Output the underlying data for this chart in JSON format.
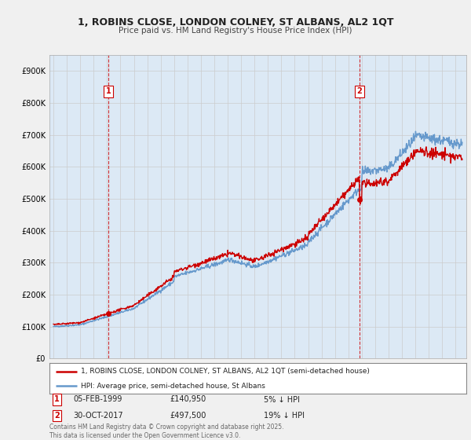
{
  "title": "1, ROBINS CLOSE, LONDON COLNEY, ST ALBANS, AL2 1QT",
  "subtitle": "Price paid vs. HM Land Registry's House Price Index (HPI)",
  "red_label": "1, ROBINS CLOSE, LONDON COLNEY, ST ALBANS, AL2 1QT (semi-detached house)",
  "blue_label": "HPI: Average price, semi-detached house, St Albans",
  "annotation1_date": "05-FEB-1999",
  "annotation1_price": "£140,950",
  "annotation1_note": "5% ↓ HPI",
  "annotation2_date": "30-OCT-2017",
  "annotation2_price": "£497,500",
  "annotation2_note": "19% ↓ HPI",
  "copyright": "Contains HM Land Registry data © Crown copyright and database right 2025.\nThis data is licensed under the Open Government Licence v3.0.",
  "ylim_min": 0,
  "ylim_max": 950000,
  "yticks": [
    0,
    100000,
    200000,
    300000,
    400000,
    500000,
    600000,
    700000,
    800000,
    900000
  ],
  "ytick_labels": [
    "£0",
    "£100K",
    "£200K",
    "£300K",
    "£400K",
    "£500K",
    "£600K",
    "£700K",
    "£800K",
    "£900K"
  ],
  "bg_color": "#f0f0f0",
  "plot_bg_color": "#dce9f5",
  "red_color": "#cc0000",
  "blue_color": "#6699cc",
  "vline_color": "#cc0000",
  "marker1_x": 1999.1,
  "marker1_y": 140950,
  "marker2_x": 2017.83,
  "marker2_y": 497500,
  "xmin": 1994.7,
  "xmax": 2025.8
}
